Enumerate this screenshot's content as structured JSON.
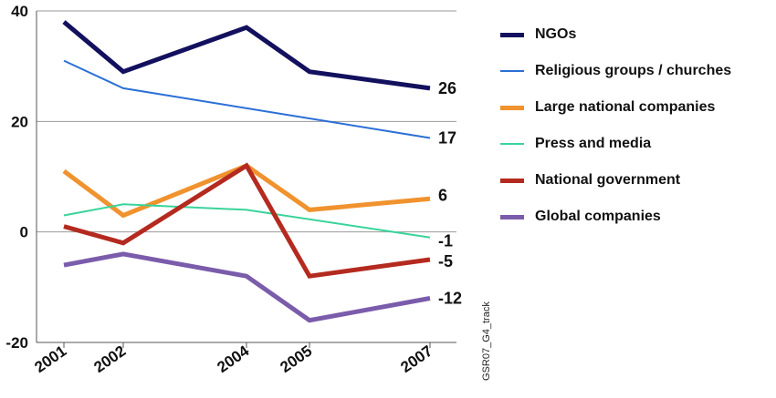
{
  "chart_data": {
    "type": "line",
    "title": "",
    "xlabel": "",
    "ylabel": "",
    "x": [
      2001,
      2002,
      2004,
      2005,
      2007
    ],
    "xlim": [
      2001,
      2007
    ],
    "ylim": [
      -20,
      40
    ],
    "yticks": [
      40,
      20,
      0,
      -20
    ],
    "grid": "horizontal-y-axis-only",
    "legend_position": "right",
    "series": [
      {
        "name": "NGOs",
        "values": [
          38,
          29,
          37,
          29,
          26
        ],
        "end_label": "26",
        "color": "#13105e",
        "weight": "heavy"
      },
      {
        "name": "Religious groups / churches",
        "values": [
          31,
          26,
          null,
          null,
          17
        ],
        "end_label": "17",
        "color": "#2b6fd6",
        "weight": "thin"
      },
      {
        "name": "Large national companies",
        "values": [
          11,
          3,
          12,
          4,
          6
        ],
        "end_label": "6",
        "color": "#f0922e",
        "weight": "heavy"
      },
      {
        "name": "Press and media",
        "values": [
          3,
          5,
          4,
          null,
          -1
        ],
        "end_label": "-1",
        "color": "#39d49a",
        "weight": "thin"
      },
      {
        "name": "National government",
        "values": [
          1,
          -2,
          12,
          -8,
          -5
        ],
        "end_label": "-5",
        "color": "#b42a1f",
        "weight": "heavy"
      },
      {
        "name": "Global companies",
        "values": [
          -6,
          -4,
          -8,
          -16,
          -12
        ],
        "end_label": "-12",
        "color": "#7a5cab",
        "weight": "heavy"
      }
    ],
    "source_note": "GSR07_G4_track"
  }
}
